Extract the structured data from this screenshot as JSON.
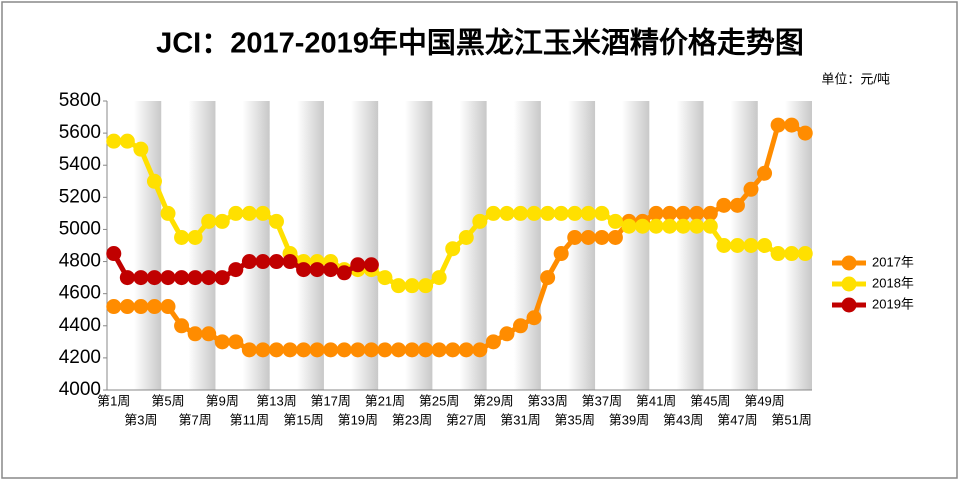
{
  "chart_data": {
    "type": "line",
    "title": "JCI：2017-2019年中国黑龙江玉米酒精价格走势图",
    "unit": "单位：元/吨",
    "categories": [
      "第1周",
      null,
      "第3周",
      null,
      "第5周",
      null,
      "第7周",
      null,
      "第9周",
      null,
      "第11周",
      null,
      "第13周",
      null,
      "第15周",
      null,
      "第17周",
      null,
      "第19周",
      null,
      "第21周",
      null,
      "第23周",
      null,
      "第25周",
      null,
      "第27周",
      null,
      "第29周",
      null,
      "第31周",
      null,
      "第33周",
      null,
      "第35周",
      null,
      "第37周",
      null,
      "第39周",
      null,
      "第41周",
      null,
      "第43周",
      null,
      "第45周",
      null,
      "第47周",
      null,
      "第49周",
      null,
      "第51周",
      null
    ],
    "series": [
      {
        "name": "2017年",
        "color": "#ff8c00",
        "values": [
          4520,
          4520,
          4520,
          4520,
          4520,
          4400,
          4350,
          4350,
          4300,
          4300,
          4250,
          4250,
          4250,
          4250,
          4250,
          4250,
          4250,
          4250,
          4250,
          4250,
          4250,
          4250,
          4250,
          4250,
          4250,
          4250,
          4250,
          4250,
          4300,
          4350,
          4400,
          4450,
          4700,
          4850,
          4950,
          4950,
          4950,
          4950,
          5050,
          5050,
          5100,
          5100,
          5100,
          5100,
          5100,
          5150,
          5150,
          5250,
          5350,
          5650,
          5650,
          5600
        ]
      },
      {
        "name": "2018年",
        "color": "#ffe000",
        "values": [
          5550,
          5550,
          5500,
          5300,
          5100,
          4950,
          4950,
          5050,
          5050,
          5100,
          5100,
          5100,
          5050,
          4850,
          4800,
          4800,
          4800,
          4750,
          4750,
          4750,
          4700,
          4650,
          4650,
          4650,
          4700,
          4880,
          4950,
          5050,
          5100,
          5100,
          5100,
          5100,
          5100,
          5100,
          5100,
          5100,
          5100,
          5050,
          5020,
          5020,
          5020,
          5020,
          5020,
          5020,
          5020,
          4900,
          4900,
          4900,
          4900,
          4850,
          4850,
          4850
        ]
      },
      {
        "name": "2019年",
        "color": "#c00000",
        "values": [
          4850,
          4700,
          4700,
          4700,
          4700,
          4700,
          4700,
          4700,
          4700,
          4750,
          4800,
          4800,
          4800,
          4800,
          4750,
          4750,
          4750,
          4730,
          4780,
          4780,
          null,
          null,
          null,
          null,
          null,
          null,
          null,
          null,
          null,
          null,
          null,
          null,
          null,
          null,
          null,
          null,
          null,
          null,
          null,
          null,
          null,
          null,
          null,
          null,
          null,
          null,
          null,
          null,
          null,
          null,
          null,
          null
        ]
      }
    ],
    "ylim": [
      4000,
      5800
    ],
    "yticks": [
      4000,
      4200,
      4400,
      4600,
      4800,
      5000,
      5200,
      5400,
      5600,
      5800
    ],
    "legend": "right"
  }
}
